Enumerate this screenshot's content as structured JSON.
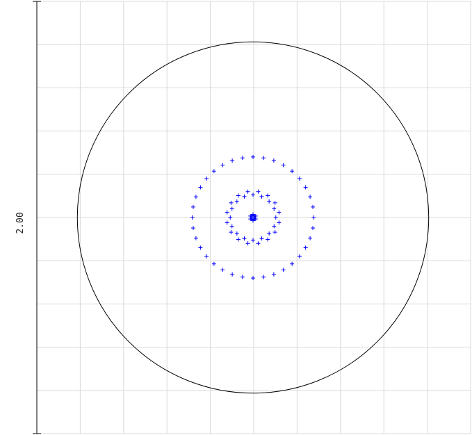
{
  "chart_data": {
    "type": "scatter",
    "title": "",
    "scale_label": "2.00",
    "grid": true,
    "grid_divisions": 10,
    "axis_half_range": 1.0,
    "colors": {
      "grid": "#d9d9d9",
      "points": "#0000ff",
      "circle": "#000000",
      "scale_bar": "#000000"
    },
    "reference_circle_radius": 0.81,
    "center_marker_radius": 0.022,
    "rings": [
      {
        "radius": 0.0,
        "count": 1
      },
      {
        "radius": 0.014,
        "count": 6
      },
      {
        "radius": 0.105,
        "count": 16
      },
      {
        "radius": 0.122,
        "count": 16
      },
      {
        "radius": 0.28,
        "count": 36
      }
    ]
  }
}
